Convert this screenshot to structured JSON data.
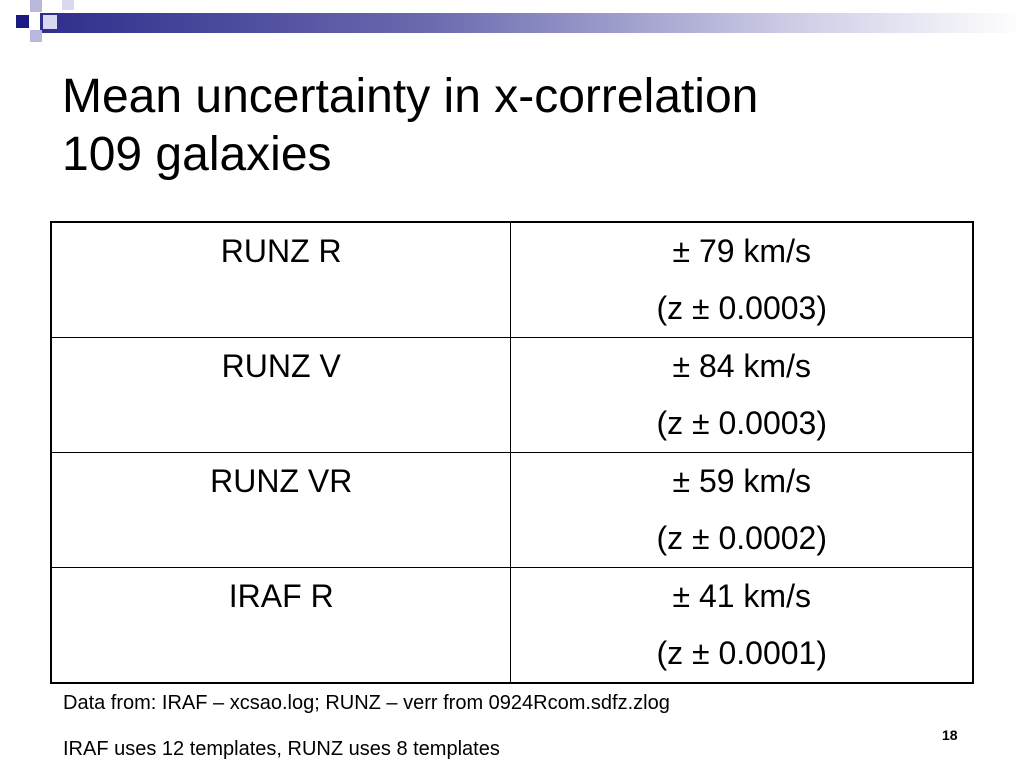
{
  "slide": {
    "title_line1": "Mean uncertainty in x-correlation",
    "title_line2": "109 galaxies",
    "rows": [
      {
        "method": "RUNZ R",
        "velocity": "± 79 km/s",
        "redshift": "(z ± 0.0003)"
      },
      {
        "method": "RUNZ V",
        "velocity": "± 84 km/s",
        "redshift": "(z ± 0.0003)"
      },
      {
        "method": "RUNZ VR",
        "velocity": "± 59 km/s",
        "redshift": "(z ± 0.0002)"
      },
      {
        "method": "IRAF R",
        "velocity": "± 41 km/s",
        "redshift": "(z ± 0.0001)"
      }
    ],
    "note1": "Data from: IRAF – xcsao.log; RUNZ – verr from 0924Rcom.sdfz.zlog",
    "note2": "IRAF uses 12 templates, RUNZ uses 8 templates",
    "page_number": "18"
  },
  "colors": {
    "accent": "#1a1a80",
    "accent_light": "#b8b8dc"
  }
}
